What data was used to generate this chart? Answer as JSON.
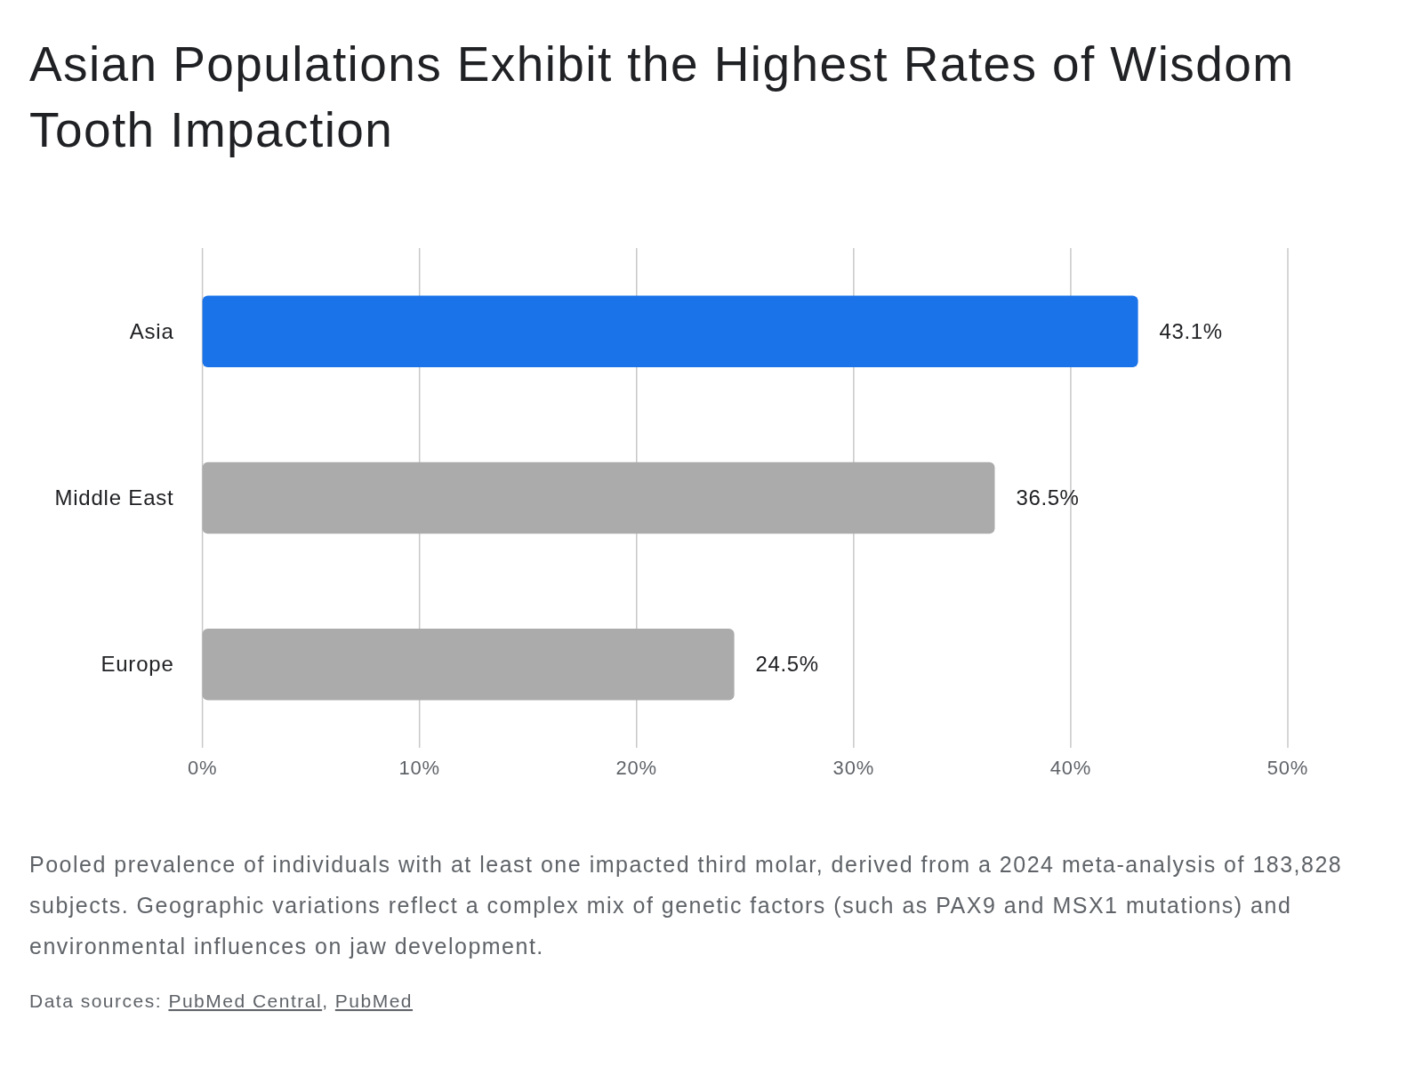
{
  "chart_data": {
    "type": "bar",
    "orientation": "horizontal",
    "title": "Asian Populations Exhibit the Highest Rates of Wisdom Tooth Impaction",
    "categories": [
      "Asia",
      "Middle East",
      "Europe"
    ],
    "values": [
      43.1,
      36.5,
      24.5
    ],
    "colors": [
      "#1a73e8",
      "#ababab",
      "#ababab"
    ],
    "value_labels": [
      "43.1%",
      "36.5%",
      "24.5%"
    ],
    "xlim": [
      0,
      50
    ],
    "xticks": [
      {
        "value": 0,
        "label": "0%"
      },
      {
        "value": 10,
        "label": "10%"
      },
      {
        "value": 20,
        "label": "20%"
      },
      {
        "value": 30,
        "label": "30%"
      },
      {
        "value": 40,
        "label": "40%"
      },
      {
        "value": 50,
        "label": "50%"
      }
    ],
    "grid": "x",
    "annotations": [
      "Pooled prevalence of individuals with at least one impacted third molar, derived from a 2024 meta-analysis of 183,828 subjects. Geographic variations reflect a complex mix of genetic factors (such as PAX9 and MSX1 mutations) and environmental influences on jaw development.",
      "Data sources: PubMed Central, PubMed"
    ]
  }
}
